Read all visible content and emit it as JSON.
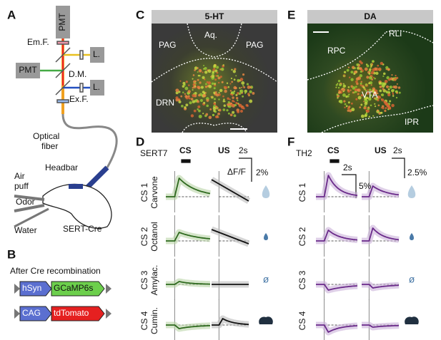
{
  "panels": {
    "A": {
      "label": "A",
      "pmt_top": "PMT",
      "emission_filter": "Em.F.",
      "laser_top": "L.",
      "pmt_left": "PMT",
      "dichroic": "D.M.",
      "laser_bottom": "L.",
      "excitation_filter": "Ex.F.",
      "fiber": [
        "Optical",
        "fiber"
      ],
      "headbar": "Headbar",
      "air_puff": [
        "Air",
        "puff"
      ],
      "odor": "Odor",
      "water": "Water",
      "mouse_line": "SERT-Cre"
    },
    "B": {
      "label": "B",
      "title": "After Cre recombination",
      "constructs": [
        {
          "promoter": "hSyn",
          "gene": "GCaMP6s"
        },
        {
          "promoter": "CAG",
          "gene": "tdTomato"
        }
      ]
    },
    "C": {
      "label": "C",
      "title": "5-HT",
      "regions": [
        "Aq.",
        "PAG",
        "PAG",
        "DRN"
      ]
    },
    "E": {
      "label": "E",
      "title": "DA",
      "regions": [
        "RLi",
        "RPC",
        "VTA",
        "IPR"
      ]
    },
    "D": {
      "label": "D",
      "mouse_line": "SERT7",
      "cs": "CS",
      "us": "US",
      "time_scale": "2s",
      "dff": "ΔF/F",
      "amplitude_scale": "2%",
      "rows": [
        [
          "CS 1",
          "Carvone"
        ],
        [
          "CS 2",
          "Octanol"
        ],
        [
          "CS 3",
          "Amylac."
        ],
        [
          "CS 4",
          "Cumin."
        ]
      ],
      "null_symbol": "ø"
    },
    "F": {
      "label": "F",
      "mouse_line": "TH2",
      "cs": "CS",
      "us": "US",
      "cs_time_scale": "2s",
      "cs_amplitude_scale": "5%",
      "us_time_scale": "2s",
      "us_amplitude_scale": "2.5%",
      "rows": [
        "CS 1",
        "CS 2",
        "CS 3",
        "CS 4"
      ],
      "null_symbol": "ø"
    }
  }
}
